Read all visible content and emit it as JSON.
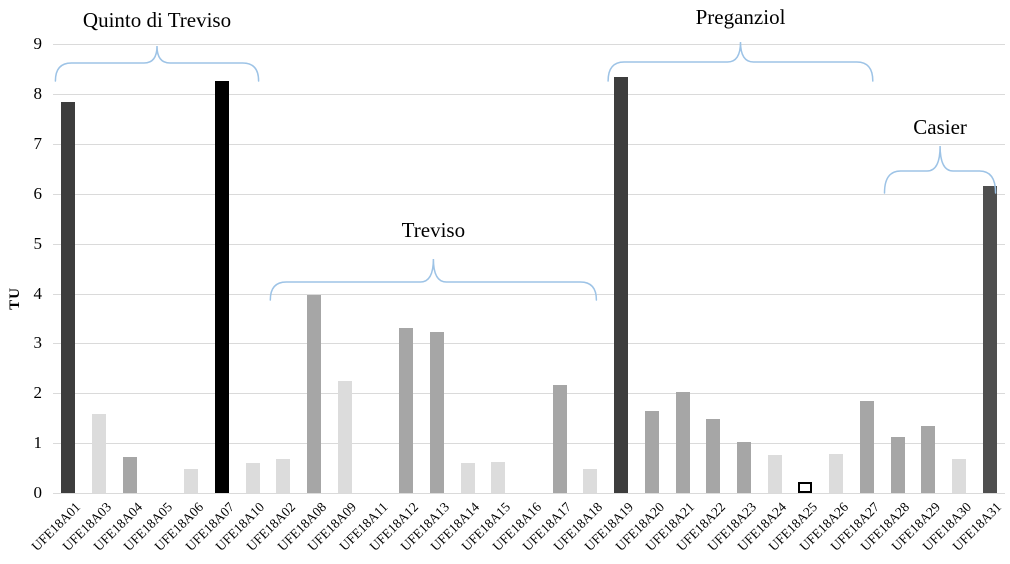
{
  "chart_data": {
    "type": "bar",
    "title": "",
    "xlabel": "",
    "ylabel": "TU",
    "ylim": [
      0,
      9
    ],
    "yticks": [
      0,
      1,
      2,
      3,
      4,
      5,
      6,
      7,
      8,
      9
    ],
    "grid": true,
    "legend": "none",
    "categories": [
      "UFE18A01",
      "UFE18A03",
      "UFE18A04",
      "UFE18A05",
      "UFE18A06",
      "UFE18A07",
      "UFE18A10",
      "UFE18A02",
      "UFE18A08",
      "UFE18A09",
      "UFE18A11",
      "UFE18A12",
      "UFE18A13",
      "UFE18A14",
      "UFE18A15",
      "UFE18A16",
      "UFE18A17",
      "UFE18A18",
      "UFE18A19",
      "UFE18A20",
      "UFE18A21",
      "UFE18A22",
      "UFE18A23",
      "UFE18A24",
      "UFE18A25",
      "UFE18A26",
      "UFE18A27",
      "UFE18A28",
      "UFE18A29",
      "UFE18A30",
      "UFE18A31"
    ],
    "values": [
      7.85,
      1.58,
      0.72,
      0,
      0.48,
      8.27,
      0.6,
      0.68,
      3.98,
      2.25,
      0,
      3.31,
      3.23,
      0.6,
      0.62,
      0,
      2.17,
      0.48,
      8.34,
      1.65,
      2.03,
      1.49,
      1.02,
      0.76,
      0.22,
      0.78,
      1.85,
      1.12,
      1.35,
      0.68,
      6.15
    ],
    "bar_styles": [
      "dark",
      "light",
      "medium",
      "none",
      "light",
      "black",
      "light",
      "light",
      "medium",
      "light",
      "none",
      "medium",
      "medium",
      "light",
      "light",
      "none",
      "medium",
      "light",
      "dark",
      "medium",
      "medium",
      "medium",
      "medium",
      "light",
      "outline",
      "light",
      "medium",
      "medium",
      "medium",
      "light",
      "dark2"
    ],
    "style_colors": {
      "black": "#000000",
      "dark": "#3d3d3d",
      "dark2": "#4f4f4f",
      "medium": "#a6a6a6",
      "light": "#dcdcdc",
      "outline": "#ffffff",
      "outline_border": "#000000"
    },
    "groups": [
      {
        "label": "Quinto di Treviso",
        "from_index": 0,
        "to_index": 6
      },
      {
        "label": "Treviso",
        "from_index": 7,
        "to_index": 17
      },
      {
        "label": "Preganziol",
        "from_index": 18,
        "to_index": 26
      },
      {
        "label": "Casier",
        "from_index": 27,
        "to_index": 30
      }
    ],
    "brace_color": "#9dc3e6",
    "grid_color": "#dadada",
    "text_color": "#000000"
  }
}
